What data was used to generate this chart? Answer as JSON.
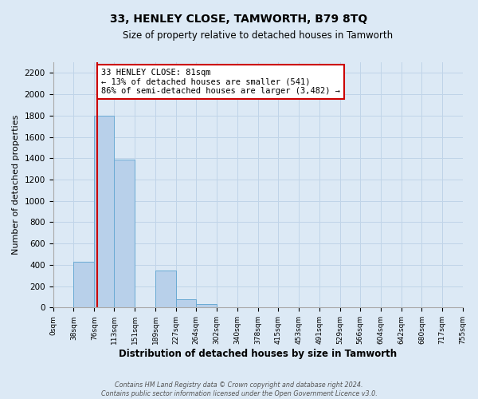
{
  "title": "33, HENLEY CLOSE, TAMWORTH, B79 8TQ",
  "subtitle": "Size of property relative to detached houses in Tamworth",
  "xlabel": "Distribution of detached houses by size in Tamworth",
  "ylabel": "Number of detached properties",
  "bin_edges": [
    0,
    38,
    76,
    113,
    151,
    189,
    227,
    264,
    302,
    340,
    378,
    415,
    453,
    491,
    529,
    566,
    604,
    642,
    680,
    717,
    755
  ],
  "bar_heights": [
    0,
    430,
    1800,
    1390,
    0,
    350,
    80,
    30,
    0,
    0,
    0,
    0,
    0,
    0,
    0,
    0,
    0,
    0,
    0,
    0
  ],
  "bar_color": "#b8d0ea",
  "bar_edge_color": "#6aaad4",
  "grid_color": "#c0d4e8",
  "background_color": "#dce9f5",
  "property_line_x": 81,
  "property_line_color": "#cc0000",
  "annotation_text": "33 HENLEY CLOSE: 81sqm\n← 13% of detached houses are smaller (541)\n86% of semi-detached houses are larger (3,482) →",
  "annotation_box_color": "#ffffff",
  "annotation_box_edge_color": "#cc0000",
  "ylim": [
    0,
    2300
  ],
  "yticks": [
    0,
    200,
    400,
    600,
    800,
    1000,
    1200,
    1400,
    1600,
    1800,
    2000,
    2200
  ],
  "footer_line1": "Contains HM Land Registry data © Crown copyright and database right 2024.",
  "footer_line2": "Contains public sector information licensed under the Open Government Licence v3.0.",
  "tick_labels": [
    "0sqm",
    "38sqm",
    "76sqm",
    "113sqm",
    "151sqm",
    "189sqm",
    "227sqm",
    "264sqm",
    "302sqm",
    "340sqm",
    "378sqm",
    "415sqm",
    "453sqm",
    "491sqm",
    "529sqm",
    "566sqm",
    "604sqm",
    "642sqm",
    "680sqm",
    "717sqm",
    "755sqm"
  ]
}
